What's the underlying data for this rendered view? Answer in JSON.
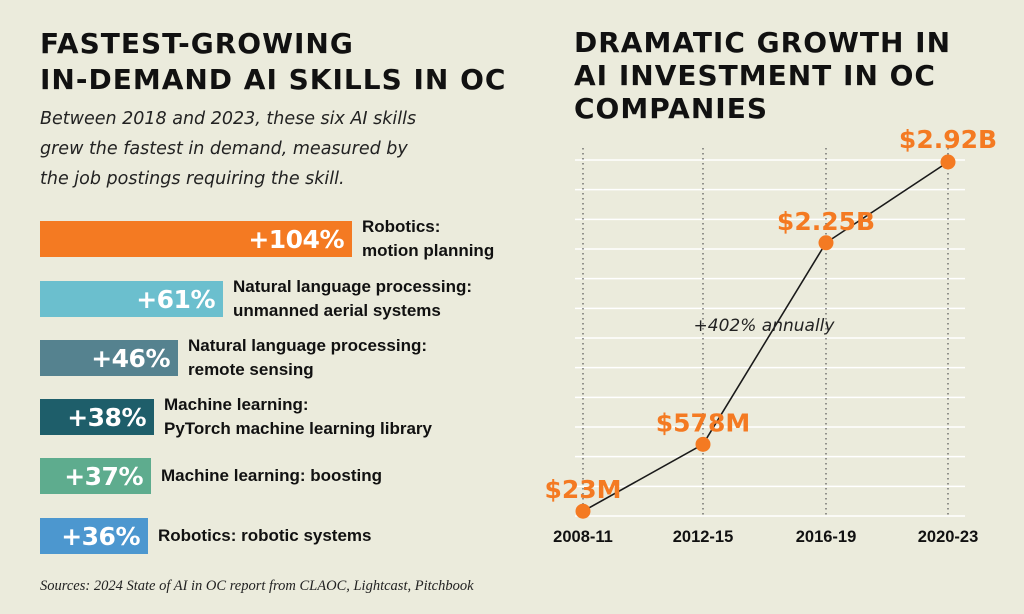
{
  "left": {
    "title_lines": [
      "FASTEST-GROWING",
      "IN-DEMAND AI SKILLS IN OC"
    ],
    "subtitle_lines": [
      "Between 2018 and 2023, these six AI skills",
      "grew the fastest in demand, measured by",
      "the job postings requiring the skill."
    ]
  },
  "right": {
    "title_lines": [
      "DRAMATIC GROWTH IN",
      "AI INVESTMENT IN OC",
      "COMPANIES"
    ]
  },
  "source": "Sources: 2024 State of AI in OC report from CLAOC, Lightcast, Pitchbook",
  "colors": {
    "background": "#ebebdc",
    "accent_orange": "#f47a22",
    "bars": [
      "#f47a22",
      "#6bbfce",
      "#55828f",
      "#1e5e6a",
      "#5eac8e",
      "#4c97cf"
    ]
  },
  "chart_data": [
    {
      "type": "bar",
      "orientation": "horizontal",
      "title": "FASTEST-GROWING IN-DEMAND AI SKILLS IN OC",
      "categories": [
        [
          "Robotics:",
          "motion planning"
        ],
        [
          "Natural language processing:",
          "unmanned aerial systems"
        ],
        [
          "Natural language processing:",
          "remote sensing"
        ],
        [
          "Machine learning:",
          "PyTorch machine learning library"
        ],
        [
          "Machine learning: boosting"
        ],
        [
          "Robotics: robotic systems"
        ]
      ],
      "values": [
        104,
        61,
        46,
        38,
        37,
        36
      ],
      "value_labels": [
        "+104%",
        "+61%",
        "+46%",
        "+38%",
        "+37%",
        "+36%"
      ],
      "unit": "%"
    },
    {
      "type": "line",
      "title": "DRAMATIC GROWTH IN AI INVESTMENT IN OC COMPANIES",
      "categories": [
        "2008-11",
        "2012-15",
        "2016-19",
        "2020-23"
      ],
      "values": [
        0.023,
        0.578,
        2.25,
        2.92
      ],
      "unit": "billion USD",
      "value_labels": [
        "$23M",
        "$578M",
        "$2.25B",
        "$2.92B"
      ],
      "annotation": "+402% annually",
      "ylim": [
        0,
        2.92
      ],
      "grid": true
    }
  ]
}
